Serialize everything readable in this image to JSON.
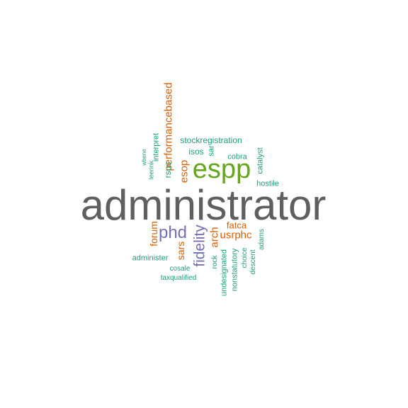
{
  "colors": {
    "gray": "#5f5f5f",
    "green": "#1b9e77",
    "orange": "#d95f02",
    "purple": "#7570b3",
    "lime": "#66a61e"
  },
  "words": [
    {
      "name": "word-administrator",
      "text": "administrator",
      "color": "gray",
      "rot": false
    },
    {
      "name": "word-espp",
      "text": "espp",
      "color": "lime",
      "rot": false
    },
    {
      "name": "word-phd",
      "text": "phd",
      "color": "purple",
      "rot": false
    },
    {
      "name": "word-fidelity",
      "text": "fidelity",
      "color": "purple",
      "rot": true
    },
    {
      "name": "word-performancebased",
      "text": "performancebased",
      "color": "orange",
      "rot": true
    },
    {
      "name": "word-esop",
      "text": "esop",
      "color": "orange",
      "rot": true
    },
    {
      "name": "word-arch",
      "text": "arch",
      "color": "orange",
      "rot": true
    },
    {
      "name": "word-usrphc",
      "text": "usrphc",
      "color": "orange",
      "rot": false
    },
    {
      "name": "word-forum",
      "text": "forum",
      "color": "orange",
      "rot": true
    },
    {
      "name": "word-fatca",
      "text": "fatca",
      "color": "orange",
      "rot": false
    },
    {
      "name": "word-sars",
      "text": "sars",
      "color": "orange",
      "rot": true
    },
    {
      "name": "word-stockregistration",
      "text": "stockregistration",
      "color": "green",
      "rot": false
    },
    {
      "name": "word-isos",
      "text": "isos",
      "color": "green",
      "rot": false
    },
    {
      "name": "word-sar",
      "text": "sar",
      "color": "green",
      "rot": true
    },
    {
      "name": "word-cobra",
      "text": "cobra",
      "color": "green",
      "rot": false
    },
    {
      "name": "word-catalyst",
      "text": "catalyst",
      "color": "green",
      "rot": true
    },
    {
      "name": "word-hostile",
      "text": "hostile",
      "color": "green",
      "rot": false
    },
    {
      "name": "word-interpret",
      "text": "interpret",
      "color": "green",
      "rot": true
    },
    {
      "name": "word-rsus",
      "text": "rsus",
      "color": "green",
      "rot": true
    },
    {
      "name": "word-leerink",
      "text": "leerink",
      "color": "green",
      "rot": true
    },
    {
      "name": "word-wbene",
      "text": "wbene",
      "color": "green",
      "rot": true
    },
    {
      "name": "word-administer",
      "text": "administer",
      "color": "green",
      "rot": false
    },
    {
      "name": "word-cosale",
      "text": "cosale",
      "color": "green",
      "rot": false
    },
    {
      "name": "word-taxqualified",
      "text": "taxqualified",
      "color": "green",
      "rot": false
    },
    {
      "name": "word-rock",
      "text": "rock",
      "color": "green",
      "rot": true
    },
    {
      "name": "word-undesignated",
      "text": "undesignated",
      "color": "green",
      "rot": true
    },
    {
      "name": "word-nonstatutory",
      "text": "nonstatutory",
      "color": "green",
      "rot": true
    },
    {
      "name": "word-choice",
      "text": "choice",
      "color": "green",
      "rot": true
    },
    {
      "name": "word-descent",
      "text": "descent",
      "color": "green",
      "rot": true
    },
    {
      "name": "word-adams",
      "text": "adams",
      "color": "green",
      "rot": true
    }
  ]
}
